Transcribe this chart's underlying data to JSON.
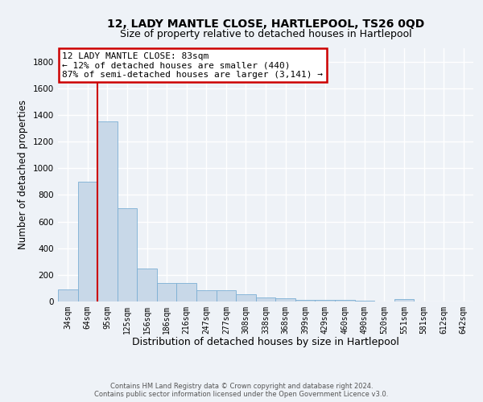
{
  "title": "12, LADY MANTLE CLOSE, HARTLEPOOL, TS26 0QD",
  "subtitle": "Size of property relative to detached houses in Hartlepool",
  "xlabel": "Distribution of detached houses by size in Hartlepool",
  "ylabel": "Number of detached properties",
  "bin_labels": [
    "34sqm",
    "64sqm",
    "95sqm",
    "125sqm",
    "156sqm",
    "186sqm",
    "216sqm",
    "247sqm",
    "277sqm",
    "308sqm",
    "338sqm",
    "368sqm",
    "399sqm",
    "429sqm",
    "460sqm",
    "490sqm",
    "520sqm",
    "551sqm",
    "581sqm",
    "612sqm",
    "642sqm"
  ],
  "bar_heights": [
    90,
    900,
    1350,
    700,
    250,
    140,
    140,
    85,
    85,
    55,
    30,
    25,
    15,
    10,
    10,
    5,
    0,
    20,
    0,
    0,
    0
  ],
  "bar_color": "#c8d8e8",
  "bar_edge_color": "#7bafd4",
  "bar_edge_width": 0.6,
  "red_line_x": 1.5,
  "ylim": [
    0,
    1900
  ],
  "yticks": [
    0,
    200,
    400,
    600,
    800,
    1000,
    1200,
    1400,
    1600,
    1800
  ],
  "annotation_line1": "12 LADY MANTLE CLOSE: 83sqm",
  "annotation_line2": "← 12% of detached houses are smaller (440)",
  "annotation_line3": "87% of semi-detached houses are larger (3,141) →",
  "annotation_box_color": "#ffffff",
  "annotation_box_edge": "#cc0000",
  "footer_line1": "Contains HM Land Registry data © Crown copyright and database right 2024.",
  "footer_line2": "Contains public sector information licensed under the Open Government Licence v3.0.",
  "bg_color": "#eef2f7",
  "grid_color": "#ffffff",
  "title_fontsize": 10,
  "subtitle_fontsize": 9,
  "tick_fontsize": 7,
  "ylabel_fontsize": 8.5,
  "xlabel_fontsize": 9,
  "annotation_fontsize": 8,
  "footer_fontsize": 6
}
